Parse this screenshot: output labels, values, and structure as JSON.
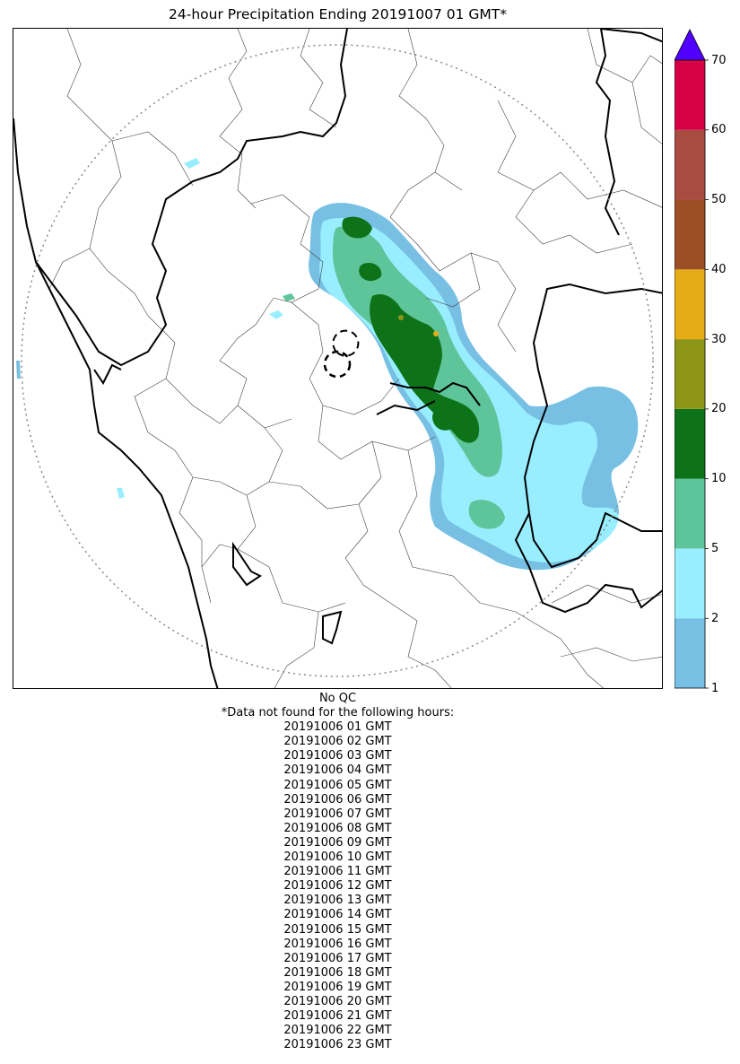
{
  "title": "24-hour Precipitation Ending 20191007 01 GMT*",
  "colorbar": {
    "ticks": [
      "1",
      "2",
      "5",
      "10",
      "20",
      "30",
      "40",
      "50",
      "60",
      "70"
    ],
    "colors": [
      "#77c0e3",
      "#98eeff",
      "#5ec49a",
      "#0e7219",
      "#8d9618",
      "#e6ac18",
      "#9c4f25",
      "#a84b40",
      "#d60046"
    ],
    "extend_color": "#5000ff"
  },
  "map": {
    "precip_colors": {
      "light_blue": "#77c0e3",
      "cyan": "#98eeff",
      "mint": "#5ec49a",
      "dark_green": "#0e7219",
      "olive": "#8d9618",
      "orange": "#e6ac18"
    },
    "radar_range_ring": "dotted",
    "radar_site_marker": "dashed-circle"
  },
  "footer": {
    "qc_note": "No QC",
    "missing_header": "*Data not found for the following hours:",
    "missing_hours": [
      "20191006 01 GMT",
      "20191006 02 GMT",
      "20191006 03 GMT",
      "20191006 04 GMT",
      "20191006 05 GMT",
      "20191006 06 GMT",
      "20191006 07 GMT",
      "20191006 08 GMT",
      "20191006 09 GMT",
      "20191006 10 GMT",
      "20191006 11 GMT",
      "20191006 12 GMT",
      "20191006 13 GMT",
      "20191006 14 GMT",
      "20191006 15 GMT",
      "20191006 16 GMT",
      "20191006 17 GMT",
      "20191006 18 GMT",
      "20191006 19 GMT",
      "20191006 20 GMT",
      "20191006 21 GMT",
      "20191006 22 GMT",
      "20191006 23 GMT"
    ]
  }
}
